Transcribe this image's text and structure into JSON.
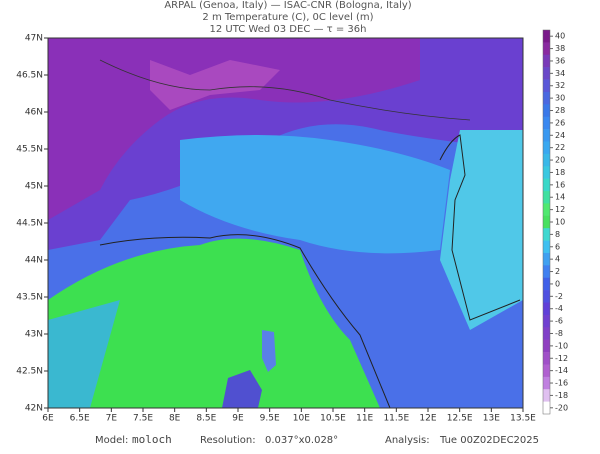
{
  "header": {
    "line1": "ARPAL (Genoa, Italy)  —  ISAC-CNR (Bologna, Italy)",
    "line2": "2 m Temperature (C), 0C level (m)",
    "line3": "12 UTC Wed 03 DEC  —  τ = 36h"
  },
  "map": {
    "lat_labels": [
      "47N",
      "46.5N",
      "46N",
      "45.5N",
      "45N",
      "44.5N",
      "44N",
      "43.5N",
      "43N",
      "42.5N",
      "42N"
    ],
    "lon_labels": [
      "6E",
      "6.5E",
      "7E",
      "7.5E",
      "8E",
      "8.5E",
      "9E",
      "9.5E",
      "10E",
      "10.5E",
      "11E",
      "11.5E",
      "12E",
      "12.5E",
      "13E",
      "13.5E"
    ]
  },
  "colorbar": {
    "ticks": [
      40,
      38,
      36,
      34,
      32,
      30,
      28,
      26,
      24,
      22,
      20,
      18,
      16,
      14,
      12,
      10,
      8,
      6,
      4,
      2,
      0,
      -2,
      -4,
      -6,
      -8,
      -10,
      -12,
      -14,
      -16,
      -18,
      -20
    ],
    "colors": [
      "#7a1a8a",
      "#8a2aa0",
      "#7a3ab8",
      "#6a48c8",
      "#5a58d8",
      "#4a68e0",
      "#3a78e8",
      "#3a88f0",
      "#3a98f0",
      "#3aa8f0",
      "#3ab8e8",
      "#3ac8e0",
      "#3ad8c8",
      "#40e0a0",
      "#50e870",
      "#48e060",
      "#40d8d0",
      "#40c0f0",
      "#40a0f0",
      "#4080f0",
      "#4060e8",
      "#5050e0",
      "#6040d8",
      "#7040d0",
      "#8040c8",
      "#9040c0",
      "#a050c8",
      "#b060d0",
      "#c080e0",
      "#e0c0f0",
      "#ffffff"
    ]
  },
  "footer": {
    "model_label": "Model:",
    "model": "moloch",
    "res_label": "Resolution:",
    "res": "0.037°x0.028°",
    "an_label": "Analysis:",
    "an": "Tue 00Z02DEC2025"
  }
}
